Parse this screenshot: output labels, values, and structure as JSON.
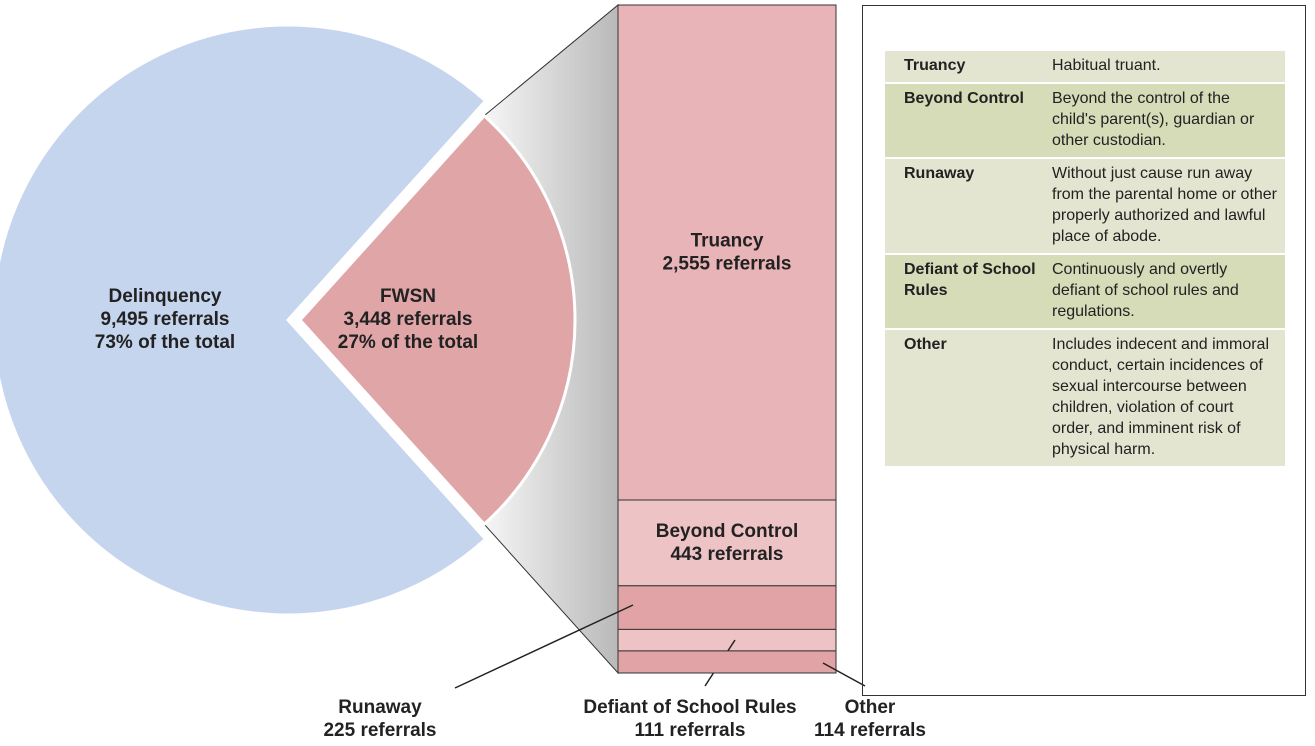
{
  "chart_data": {
    "type": "bar-of-pie",
    "pie": {
      "categories": [
        "Delinquency",
        "FWSN"
      ],
      "values": [
        9495,
        3448
      ],
      "value_labels": [
        "9,495 referrals",
        "3,448 referrals"
      ],
      "percents": [
        73,
        27
      ],
      "percent_labels": [
        "73% of the total",
        "27% of the total"
      ],
      "colors": [
        "#c5d5ee",
        "#e0a5a7"
      ]
    },
    "bar": {
      "categories": [
        "Truancy",
        "Beyond Control",
        "Runaway",
        "Defiant of School Rules",
        "Other"
      ],
      "values": [
        2555,
        443,
        225,
        111,
        114
      ],
      "value_labels": [
        "2,555 referrals",
        "443 referrals",
        "225 referrals",
        "111 referrals",
        "114 referrals"
      ],
      "colors": [
        "#e8b4b8",
        "#eec3c6",
        "#e2a3a6",
        "#eec3c6",
        "#e2a3a6"
      ]
    }
  },
  "table": {
    "rows": [
      [
        "Truancy",
        "Habitual truant."
      ],
      [
        "Beyond Control",
        "Beyond the control of the child's parent(s), guardian or other custodian."
      ],
      [
        "Runaway",
        "Without just cause run away from the parental home or other properly authorized and lawful place of abode."
      ],
      [
        "Defiant of School Rules",
        "Continuously and overtly defiant of school rules and regulations."
      ],
      [
        "Other",
        "Includes indecent and immoral conduct, certain incidences of sexual intercourse between children, violation of court order, and imminent risk of physical harm."
      ]
    ]
  }
}
